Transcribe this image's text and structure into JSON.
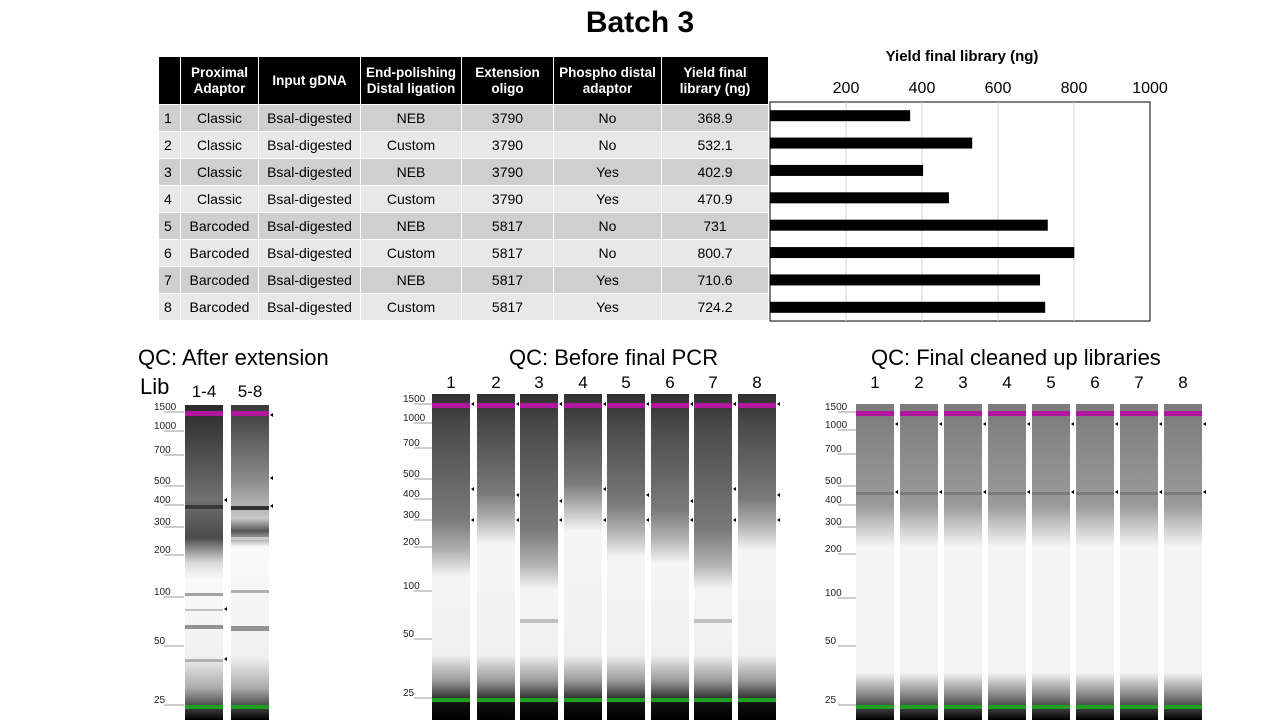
{
  "title": "Batch 3",
  "table": {
    "headers": [
      "",
      "Proximal Adaptor",
      "Input gDNA",
      "End-polishing Distal ligation",
      "Extension oligo",
      "Phospho distal adaptor",
      "Yield final library (ng)"
    ],
    "rows": [
      [
        "1",
        "Classic",
        "Bsal-digested",
        "NEB",
        "3790",
        "No",
        "368.9"
      ],
      [
        "2",
        "Classic",
        "Bsal-digested",
        "Custom",
        "3790",
        "No",
        "532.1"
      ],
      [
        "3",
        "Classic",
        "Bsal-digested",
        "NEB",
        "3790",
        "Yes",
        "402.9"
      ],
      [
        "4",
        "Classic",
        "Bsal-digested",
        "Custom",
        "3790",
        "Yes",
        "470.9"
      ],
      [
        "5",
        "Barcoded",
        "Bsal-digested",
        "NEB",
        "5817",
        "No",
        "731"
      ],
      [
        "6",
        "Barcoded",
        "Bsal-digested",
        "Custom",
        "5817",
        "No",
        "800.7"
      ],
      [
        "7",
        "Barcoded",
        "Bsal-digested",
        "NEB",
        "5817",
        "Yes",
        "710.6"
      ],
      [
        "8",
        "Barcoded",
        "Bsal-digested",
        "Custom",
        "5817",
        "Yes",
        "724.2"
      ]
    ]
  },
  "chart_data": {
    "type": "bar",
    "orientation": "horizontal",
    "title": "Yield final library (ng)",
    "categories": [
      "1",
      "2",
      "3",
      "4",
      "5",
      "6",
      "7",
      "8"
    ],
    "values": [
      368.9,
      532.1,
      402.9,
      470.9,
      731,
      800.7,
      710.6,
      724.2
    ],
    "xlim": [
      0,
      1000
    ],
    "xticks": [
      "200",
      "400",
      "600",
      "800",
      "1000"
    ],
    "tick_values": [
      200,
      400,
      600,
      800,
      1000
    ],
    "xaxis_position": "top",
    "grid": true,
    "bar_color": "#000000"
  },
  "gels": [
    {
      "title": "QC: After extension",
      "side_label": "Lib",
      "lanes": [
        "1-4",
        "5-8"
      ],
      "ladder": [
        "1500",
        "1000",
        "700",
        "500",
        "400",
        "300",
        "200",
        "100",
        "50",
        "25"
      ]
    },
    {
      "title": "QC: Before final PCR",
      "lanes": [
        "1",
        "2",
        "3",
        "4",
        "5",
        "6",
        "7",
        "8"
      ],
      "ladder": [
        "1500",
        "1000",
        "700",
        "500",
        "400",
        "300",
        "200",
        "100",
        "50",
        "25"
      ]
    },
    {
      "title": "QC: Final cleaned up libraries",
      "lanes": [
        "1",
        "2",
        "3",
        "4",
        "5",
        "6",
        "7",
        "8"
      ],
      "ladder": [
        "1500",
        "1000",
        "700",
        "500",
        "400",
        "300",
        "200",
        "100",
        "50",
        "25"
      ]
    }
  ],
  "colors": {
    "upper_marker": "#b0179c",
    "lower_marker": "#1ea01e"
  }
}
